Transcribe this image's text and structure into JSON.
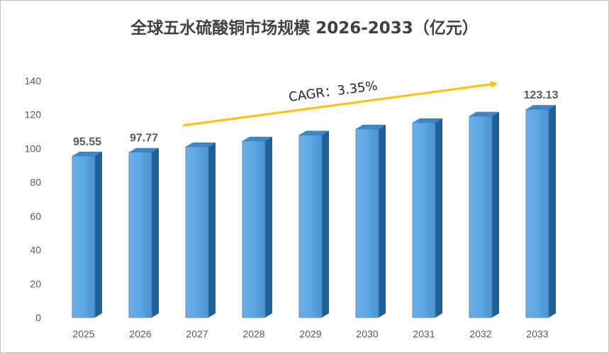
{
  "chart_data": {
    "type": "bar",
    "title": "全球五水硫酸铜市场规模 2026-2033（亿元）",
    "categories": [
      "2025",
      "2026",
      "2027",
      "2028",
      "2029",
      "2030",
      "2031",
      "2032",
      "2033"
    ],
    "values": [
      95.55,
      97.77,
      101.04,
      104.42,
      107.92,
      111.54,
      115.28,
      119.14,
      123.13
    ],
    "data_labels": {
      "2025": "95.55",
      "2026": "97.77",
      "2033": "123.13"
    },
    "ylim": [
      0,
      140
    ],
    "yticks": [
      "0",
      "20",
      "40",
      "60",
      "80",
      "100",
      "120",
      "140"
    ],
    "xlabel": "",
    "ylabel": "",
    "grid": false,
    "annotation": {
      "text": "CAGR：3.35%",
      "color": "#ffc000"
    },
    "bar_color": "#5b9bd5"
  }
}
